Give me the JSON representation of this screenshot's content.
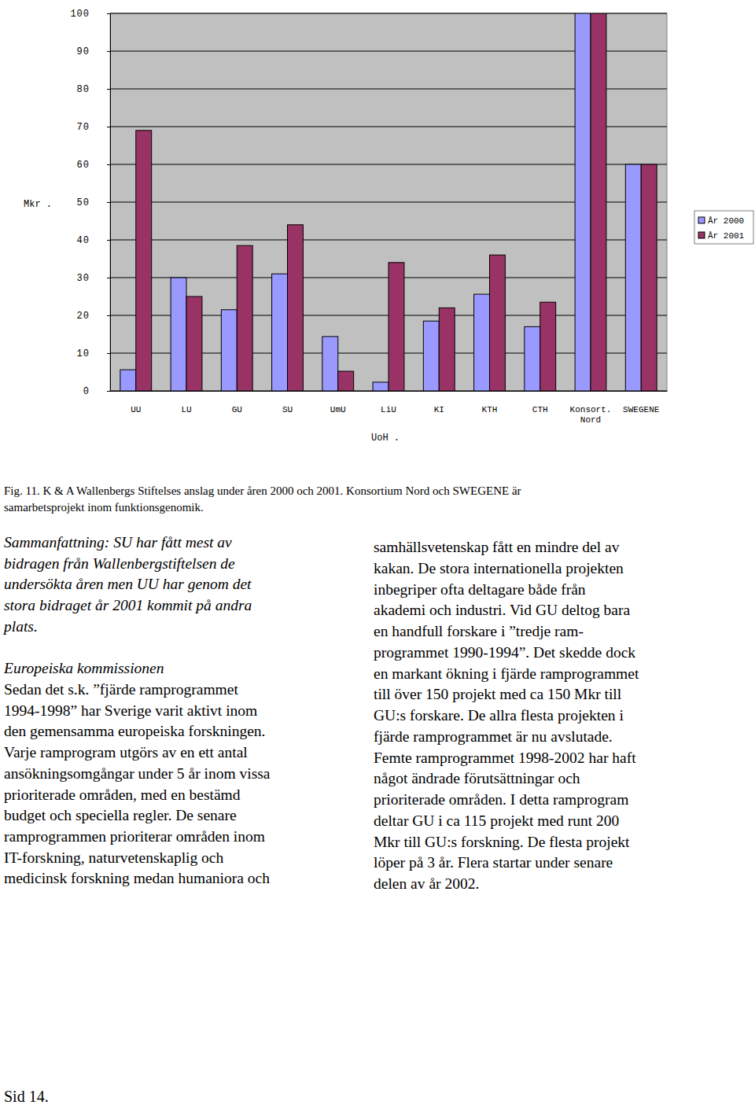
{
  "chart_data": {
    "type": "bar",
    "categories": [
      "UU",
      "LU",
      "GU",
      "SU",
      "UmU",
      "LiU",
      "KI",
      "KTH",
      "CTH",
      "Konsort. Nord",
      "SWEGENE"
    ],
    "series": [
      {
        "name": "År 2000",
        "color": "#9999ff",
        "values": [
          5.6,
          30,
          21.5,
          31,
          14.4,
          2.3,
          18.5,
          25.6,
          17,
          100,
          60
        ]
      },
      {
        "name": "År 2001",
        "color": "#993366",
        "values": [
          69,
          25,
          38.5,
          44,
          5.2,
          34,
          22,
          36,
          23.5,
          100,
          60
        ]
      }
    ],
    "x_label": "UoH .",
    "y_label": "Mkr .",
    "ylim": [
      0,
      100
    ],
    "yticks": [
      0,
      10,
      20,
      30,
      40,
      50,
      60,
      70,
      80,
      90,
      100
    ],
    "grid": true,
    "legend": "right"
  },
  "document": {
    "caption": [
      "Fig. 11. K & A Wallenbergs Stiftelses anslag under åren 2000 och 2001. Konsortium Nord och SWEGENE är",
      "samarbetsprojekt inom funktionsgenomik."
    ],
    "summary": [
      "Sammanfattning: SU har fått mest av",
      "bidragen från Wallenbergstiftelsen de",
      "undersökta åren men UU har genom det",
      "stora bidraget år 2001 kommit på andra",
      "plats."
    ],
    "heading": "Europeiska kommissionen",
    "left_column": [
      "Sedan det s.k. ”fjärde ramprogrammet",
      "1994-1998” har Sverige varit aktivt inom",
      "den gemensamma europeiska forskningen.",
      "Varje ramprogram utgörs av en ett antal",
      "ansökningsomgångar under 5 år inom vissa",
      "prioriterade områden, med en bestämd",
      "budget och speciella regler. De senare",
      "ramprogrammen prioriterar områden inom",
      "IT-forskning, naturvetenskaplig och",
      "medicinsk forskning medan humaniora och"
    ],
    "right_column": [
      "samhällsvetenskap fått en mindre del av",
      "kakan. De stora internationella projekten",
      "inbegriper ofta deltagare både från",
      "akademi och industri.  Vid GU deltog bara",
      "en handfull forskare i ”tredje ram-",
      "programmet 1990-1994”. Det skedde dock",
      "en markant ökning i fjärde ramprogrammet",
      "till över 150 projekt med ca 150 Mkr till",
      "GU:s forskare. De allra flesta projekten i",
      "fjärde ramprogrammet är nu avslutade.",
      "Femte ramprogrammet 1998-2002 har haft",
      "något ändrade förutsättningar och",
      "prioriterade områden. I detta ramprogram",
      "deltar GU i ca 115 projekt med runt 200",
      "Mkr till GU:s forskning. De flesta projekt",
      "löper på 3 år. Flera startar under senare",
      "delen av år 2002."
    ],
    "page_number": "Sid 14."
  }
}
